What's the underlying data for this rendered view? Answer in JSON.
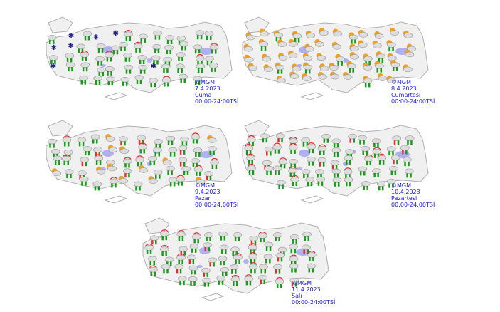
{
  "maps": [
    {
      "copyright": "©MGM",
      "date": "7.4.2023",
      "day": "Cuma",
      "period": "00:00-24:00TSİ",
      "icons": [
        "rain",
        "rain",
        "rain",
        "rain-showers",
        "rain",
        "snow"
      ]
    },
    {
      "copyright": "©MGM",
      "date": "8.4.2023",
      "day": "Cumartesi",
      "period": "00:00-24:00TSİ",
      "icons": [
        "sun-cloud",
        "sun-cloud",
        "cloud-rain-sun",
        "sun-cloud"
      ]
    },
    {
      "copyright": "©MGM",
      "date": "9.4.2023",
      "day": "Pazar",
      "period": "00:00-24:00TSİ",
      "icons": [
        "rain",
        "rain-showers",
        "rain",
        "thunderstorm",
        "sun-cloud"
      ]
    },
    {
      "copyright": "©MGM",
      "date": "10.4.2023",
      "day": "Pazartesi",
      "period": "00:00-24:00TSİ",
      "icons": [
        "rain",
        "rain-showers",
        "rain",
        "thunderstorm"
      ]
    },
    {
      "copyright": "©MGM",
      "date": "11.4.2023",
      "day": "Salı",
      "period": "00:00-24:00TSİ",
      "icons": [
        "rain",
        "rain-showers",
        "thunderstorm",
        "rain"
      ]
    }
  ],
  "colors": {
    "land": "#f0f0f0",
    "border": "#b0b0b0",
    "lake": "#b0b0f0",
    "caption": "#1a1ae6",
    "rain": "#1a9a1a",
    "sun": "#f0a020",
    "storm": "#e03030"
  }
}
